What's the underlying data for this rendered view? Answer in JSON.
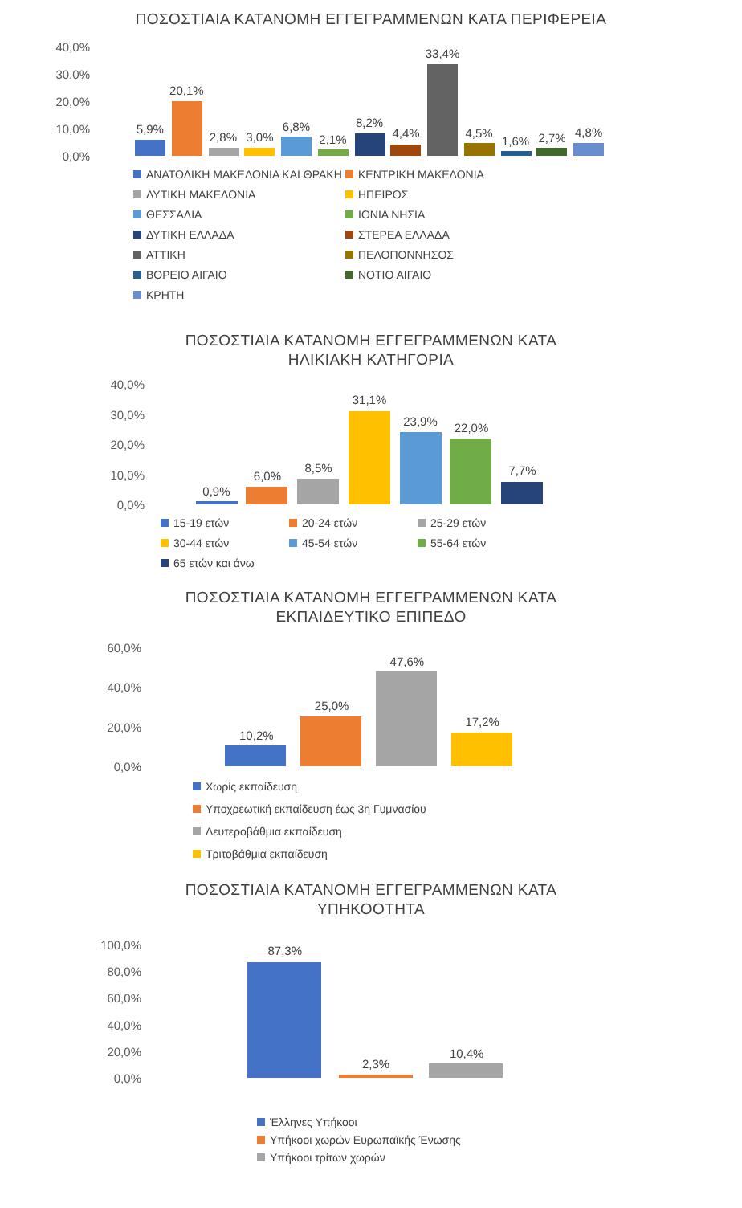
{
  "chart_data": [
    {
      "type": "bar",
      "title": "ΠΟΣΟΣΤΙΑΙΑ ΚΑΤΑΝΟΜΗ ΕΓΓΕΓΡΑΜΜΕΝΩΝ ΚΑΤΑ ΠΕΡΙΦΕΡΕΙΑ",
      "categories": [
        null
      ],
      "legend": "bottom",
      "ylim": [
        0,
        40
      ],
      "yticks": [
        {
          "value": 0,
          "label": "0,0%"
        },
        {
          "value": 10,
          "label": "10,0%"
        },
        {
          "value": 20,
          "label": "20,0%"
        },
        {
          "value": 30,
          "label": "30,0%"
        },
        {
          "value": 40,
          "label": "40,0%"
        }
      ],
      "series": [
        {
          "name": "ΑΝΑΤΟΛΙΚΗ ΜΑΚΕΔΟΝΙΑ ΚΑΙ ΘΡΑΚΗ",
          "color": "#4472c4",
          "values": [
            5.9
          ],
          "value_labels": [
            "5,9%"
          ]
        },
        {
          "name": "ΚΕΝΤΡΙΚΗ ΜΑΚΕΔΟΝΙΑ",
          "color": "#ed7d31",
          "values": [
            20.1
          ],
          "value_labels": [
            "20,1%"
          ]
        },
        {
          "name": "ΔΥΤΙΚΗ ΜΑΚΕΔΟΝΙΑ",
          "color": "#a5a5a5",
          "values": [
            2.8
          ],
          "value_labels": [
            "2,8%"
          ]
        },
        {
          "name": "ΗΠΕΙΡΟΣ",
          "color": "#ffc000",
          "values": [
            3.0
          ],
          "value_labels": [
            "3,0%"
          ]
        },
        {
          "name": "ΘΕΣΣΑΛΙΑ",
          "color": "#5b9bd5",
          "values": [
            6.8
          ],
          "value_labels": [
            "6,8%"
          ]
        },
        {
          "name": "ΙΟΝΙΑ ΝΗΣΙΑ",
          "color": "#70ad47",
          "values": [
            2.1
          ],
          "value_labels": [
            "2,1%"
          ]
        },
        {
          "name": "ΔΥΤΙΚΗ ΕΛΛΑΔΑ",
          "color": "#264478",
          "values": [
            8.2
          ],
          "value_labels": [
            "8,2%"
          ]
        },
        {
          "name": "ΣΤΕΡΕΑ ΕΛΛΑΔΑ",
          "color": "#9e480e",
          "values": [
            4.4
          ],
          "value_labels": [
            "4,4%"
          ]
        },
        {
          "name": "ΑΤΤΙΚΗ",
          "color": "#636363",
          "values": [
            33.4
          ],
          "value_labels": [
            "33,4%"
          ]
        },
        {
          "name": "ΠΕΛΟΠΟΝΝΗΣΟΣ",
          "color": "#997300",
          "values": [
            4.5
          ],
          "value_labels": [
            "4,5%"
          ]
        },
        {
          "name": "ΒΟΡΕΙΟ ΑΙΓΑΙΟ",
          "color": "#255e91",
          "values": [
            1.6
          ],
          "value_labels": [
            "1,6%"
          ]
        },
        {
          "name": "ΝΟΤΙΟ ΑΙΓΑΙΟ",
          "color": "#43682b",
          "values": [
            2.7
          ],
          "value_labels": [
            "2,7%"
          ]
        },
        {
          "name": "ΚΡΗΤΗ",
          "color": "#698ed0",
          "values": [
            4.8
          ],
          "value_labels": [
            "4,8%"
          ]
        }
      ]
    },
    {
      "type": "bar",
      "title": "ΠΟΣΟΣΤΙΑΙΑ ΚΑΤΑΝΟΜΗ ΕΓΓΕΓΡΑΜΜΕΝΩΝ  ΚΑΤΑ ΗΛΙΚΙΑΚΗ ΚΑΤΗΓΟΡΙΑ",
      "categories": [
        null
      ],
      "legend": "bottom",
      "ylim": [
        0,
        40
      ],
      "yticks": [
        {
          "value": 0,
          "label": "0,0%"
        },
        {
          "value": 10,
          "label": "10,0%"
        },
        {
          "value": 20,
          "label": "20,0%"
        },
        {
          "value": 30,
          "label": "30,0%"
        },
        {
          "value": 40,
          "label": "40,0%"
        }
      ],
      "series": [
        {
          "name": "15-19 ετών",
          "color": "#4472c4",
          "values": [
            0.9
          ],
          "value_labels": [
            "0,9%"
          ]
        },
        {
          "name": "20-24 ετών",
          "color": "#ed7d31",
          "values": [
            6.0
          ],
          "value_labels": [
            "6,0%"
          ]
        },
        {
          "name": "25-29 ετών",
          "color": "#a5a5a5",
          "values": [
            8.5
          ],
          "value_labels": [
            "8,5%"
          ]
        },
        {
          "name": "30-44 ετών",
          "color": "#ffc000",
          "values": [
            31.1
          ],
          "value_labels": [
            "31,1%"
          ]
        },
        {
          "name": "45-54 ετών",
          "color": "#5b9bd5",
          "values": [
            23.9
          ],
          "value_labels": [
            "23,9%"
          ]
        },
        {
          "name": "55-64 ετών",
          "color": "#70ad47",
          "values": [
            22.0
          ],
          "value_labels": [
            "22,0%"
          ]
        },
        {
          "name": "65 ετών και άνω",
          "color": "#264478",
          "values": [
            7.7
          ],
          "value_labels": [
            "7,7%"
          ]
        }
      ]
    },
    {
      "type": "bar",
      "title": "ΠΟΣΟΣΤΙΑΙΑ ΚΑΤΑΝΟΜΗ ΕΓΓΕΓΡΑΜΜΕΝΩΝ ΚΑΤΑ ΕΚΠΑΙΔΕΥΤΙΚΟ ΕΠΙΠΕΔΟ",
      "categories": [
        null
      ],
      "legend": "bottom",
      "ylim": [
        0,
        60
      ],
      "yticks": [
        {
          "value": 0,
          "label": "0,0%"
        },
        {
          "value": 20,
          "label": "20,0%"
        },
        {
          "value": 40,
          "label": "40,0%"
        },
        {
          "value": 60,
          "label": "60,0%"
        }
      ],
      "series": [
        {
          "name": "Χωρίς εκπαίδευση",
          "color": "#4472c4",
          "values": [
            10.2
          ],
          "value_labels": [
            "10,2%"
          ]
        },
        {
          "name": "Υποχρεωτική εκπαίδευση έως 3η Γυμνασίου",
          "color": "#ed7d31",
          "values": [
            25.0
          ],
          "value_labels": [
            "25,0%"
          ]
        },
        {
          "name": "Δευτεροβάθμια εκπαίδευση",
          "color": "#a5a5a5",
          "values": [
            47.6
          ],
          "value_labels": [
            "47,6%"
          ]
        },
        {
          "name": "Τριτοβάθμια εκπαίδευση",
          "color": "#ffc000",
          "values": [
            17.2
          ],
          "value_labels": [
            "17,2%"
          ]
        }
      ]
    },
    {
      "type": "bar",
      "title": "ΠΟΣΟΣΤΙΑΙΑ ΚΑΤΑΝΟΜΗ  ΕΓΓΕΓΡΑΜΜΕΝΩΝ ΚΑΤΑ ΥΠΗΚΟΟΤΗΤΑ",
      "categories": [
        null
      ],
      "legend": "bottom",
      "ylim": [
        0,
        100
      ],
      "yticks": [
        {
          "value": 0,
          "label": "0,0%"
        },
        {
          "value": 20,
          "label": "20,0%"
        },
        {
          "value": 40,
          "label": "40,0%"
        },
        {
          "value": 60,
          "label": "60,0%"
        },
        {
          "value": 80,
          "label": "80,0%"
        },
        {
          "value": 100,
          "label": "100,0%"
        }
      ],
      "series": [
        {
          "name": "Έλληνες Υπήκοοι",
          "color": "#4472c4",
          "values": [
            87.3
          ],
          "value_labels": [
            "87,3%"
          ]
        },
        {
          "name": "Υπήκοοι χωρών Ευρωπαϊκής Ένωσης",
          "color": "#ed7d31",
          "values": [
            2.3
          ],
          "value_labels": [
            "2,3%"
          ]
        },
        {
          "name": "Υπήκοοι τρίτων χωρών",
          "color": "#a5a5a5",
          "values": [
            10.4
          ],
          "value_labels": [
            "10,4%"
          ]
        }
      ]
    }
  ]
}
